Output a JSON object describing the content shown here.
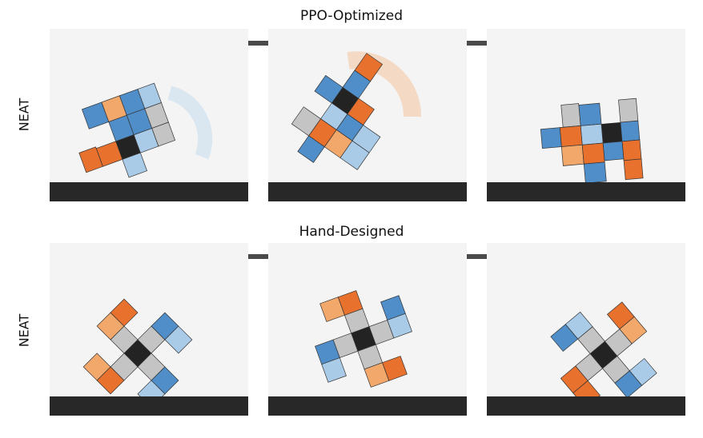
{
  "rows": [
    {
      "title": "PPO-Optimized",
      "ylabel": "NEAT"
    },
    {
      "title": "Hand-Designed",
      "ylabel": "NEAT"
    }
  ],
  "colors": {
    "blue": "#4f8ec9",
    "light_blue": "#a9cbe8",
    "orange": "#e8712d",
    "light_orange": "#f3a86b",
    "gray": "#c4c4c4",
    "core": "#232323",
    "ground": "#282828",
    "panel": "#f4f4f4",
    "arrow": "#4a4a4a"
  }
}
